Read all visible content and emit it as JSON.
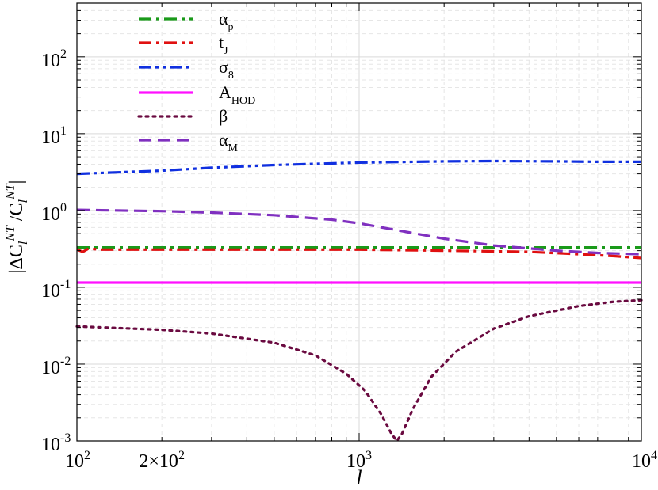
{
  "chart_data": {
    "type": "line",
    "xscale": "log",
    "yscale": "log",
    "xlim": [
      100,
      10000
    ],
    "ylim": [
      0.001,
      500
    ],
    "grid": true,
    "legend_position": "top-left",
    "xlabel": "l",
    "ylabel": "|ΔC_l^NT /C_l^NT|",
    "xticks": [
      {
        "value": 100,
        "base": "10",
        "exp": "2",
        "prefix": ""
      },
      {
        "value": 200,
        "base": "10",
        "exp": "2",
        "prefix": "2×"
      },
      {
        "value": 1000,
        "base": "10",
        "exp": "3",
        "prefix": ""
      },
      {
        "value": 10000,
        "base": "10",
        "exp": "4",
        "prefix": ""
      }
    ],
    "yticks": [
      {
        "value": 0.001,
        "base": "10",
        "exp": "-3"
      },
      {
        "value": 0.01,
        "base": "10",
        "exp": "-2"
      },
      {
        "value": 0.1,
        "base": "10",
        "exp": "-1"
      },
      {
        "value": 1,
        "base": "10",
        "exp": "0"
      },
      {
        "value": 10,
        "base": "10",
        "exp": "1"
      },
      {
        "value": 100,
        "base": "10",
        "exp": "2"
      }
    ],
    "series": [
      {
        "name": "α",
        "sub": "p",
        "color": "#1a9a1a",
        "dash": "16,6,4,6",
        "x": [
          100,
          200,
          500,
          1000,
          2000,
          5000,
          10000
        ],
        "y": [
          0.33,
          0.33,
          0.33,
          0.33,
          0.33,
          0.33,
          0.33
        ]
      },
      {
        "name": "t",
        "sub": "J",
        "color": "#e01010",
        "dash": "16,6,4,6",
        "x": [
          100,
          105,
          110,
          120,
          200,
          500,
          1000,
          2000,
          4000,
          6000,
          8000,
          10000
        ],
        "y": [
          0.31,
          0.29,
          0.32,
          0.31,
          0.31,
          0.31,
          0.31,
          0.3,
          0.29,
          0.27,
          0.255,
          0.24
        ]
      },
      {
        "name": "σ",
        "sub": "8",
        "color": "#1030e0",
        "dash": "16,5,4,5,4,5",
        "x": [
          100,
          200,
          300,
          500,
          1000,
          2000,
          3000,
          5000,
          7000,
          10000
        ],
        "y": [
          3.0,
          3.3,
          3.6,
          3.9,
          4.2,
          4.35,
          4.4,
          4.35,
          4.3,
          4.3
        ]
      },
      {
        "name": "A",
        "sub": "HOD",
        "color": "#ff10ff",
        "dash": "",
        "x": [
          100,
          10000
        ],
        "y": [
          0.115,
          0.115
        ]
      },
      {
        "name": "β",
        "sub": "",
        "color": "#6a0a40",
        "dash": "3,6",
        "x": [
          100,
          200,
          300,
          500,
          700,
          900,
          1050,
          1200,
          1300,
          1360,
          1420,
          1550,
          1800,
          2200,
          3000,
          4000,
          6000,
          8000,
          10000
        ],
        "y": [
          0.031,
          0.028,
          0.025,
          0.019,
          0.013,
          0.0075,
          0.0045,
          0.0022,
          0.00125,
          0.001,
          0.00125,
          0.0026,
          0.0068,
          0.0145,
          0.029,
          0.042,
          0.057,
          0.065,
          0.068
        ]
      },
      {
        "name": "α",
        "sub": "M",
        "color": "#8030c0",
        "dash": "16,8",
        "x": [
          100,
          200,
          300,
          500,
          800,
          1000,
          1500,
          2000,
          3000,
          5000,
          7000,
          10000
        ],
        "y": [
          1.02,
          0.98,
          0.94,
          0.87,
          0.76,
          0.68,
          0.52,
          0.43,
          0.35,
          0.3,
          0.28,
          0.27
        ]
      }
    ]
  }
}
